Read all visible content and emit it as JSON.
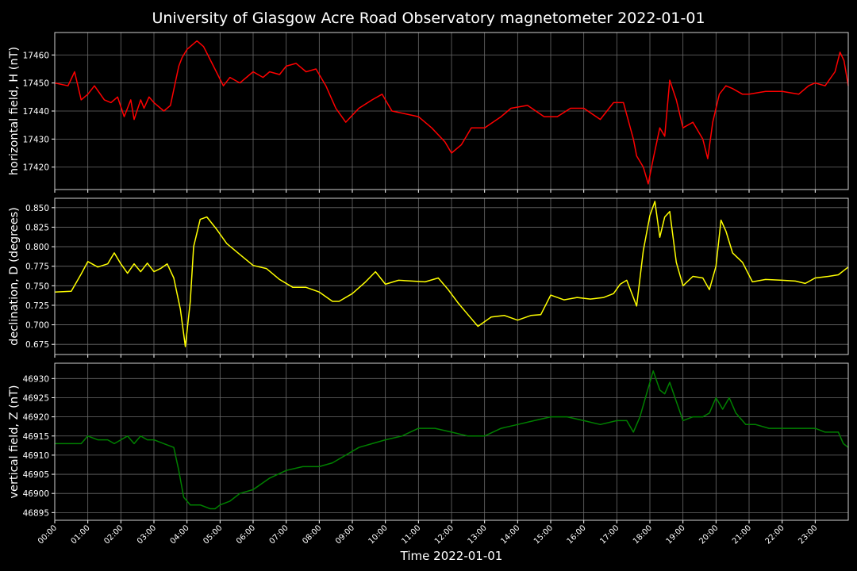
{
  "figure_title": "University of Glasgow Acre Road Observatory magnetometer 2022-01-01",
  "background": "#000000",
  "chart_data": [
    {
      "type": "line",
      "ylabel": "horizontal field, H (nT)",
      "color": "#ff0000",
      "ylim": [
        17412,
        17468
      ],
      "yticks": [
        17420,
        17430,
        17440,
        17450,
        17460
      ],
      "ytick_labels": [
        "17420",
        "17430",
        "17440",
        "17450",
        "17460"
      ],
      "grid": true,
      "x_hours": [
        0,
        0.4,
        0.6,
        0.8,
        1.0,
        1.2,
        1.5,
        1.7,
        1.9,
        2.1,
        2.3,
        2.4,
        2.6,
        2.7,
        2.85,
        3.0,
        3.3,
        3.5,
        3.75,
        3.85,
        4.0,
        4.3,
        4.5,
        4.8,
        5.1,
        5.3,
        5.6,
        6.0,
        6.3,
        6.5,
        6.8,
        7.0,
        7.3,
        7.6,
        7.9,
        8.2,
        8.5,
        8.8,
        9.2,
        9.6,
        9.9,
        10.2,
        10.6,
        11.0,
        11.4,
        11.8,
        12.0,
        12.3,
        12.6,
        13.0,
        13.5,
        13.8,
        14.3,
        14.8,
        15.2,
        15.6,
        16.0,
        16.5,
        16.9,
        17.2,
        17.5,
        17.6,
        17.8,
        17.95,
        18.1,
        18.3,
        18.45,
        18.6,
        18.8,
        19.0,
        19.3,
        19.6,
        19.75,
        19.9,
        20.1,
        20.3,
        20.5,
        20.8,
        21.0,
        21.5,
        22.0,
        22.5,
        22.8,
        23.0,
        23.3,
        23.6,
        23.75,
        23.87,
        24.0
      ],
      "values": [
        17450,
        17449,
        17454,
        17444,
        17446,
        17449,
        17444,
        17443,
        17445,
        17438,
        17444,
        17437,
        17444,
        17441,
        17445,
        17443,
        17440,
        17442,
        17456,
        17459,
        17462,
        17465,
        17463,
        17456,
        17449,
        17452,
        17450,
        17454,
        17452,
        17454,
        17453,
        17456,
        17457,
        17454,
        17455,
        17449,
        17441,
        17436,
        17441,
        17444,
        17446,
        17440,
        17439,
        17438,
        17434,
        17429,
        17425,
        17428,
        17434,
        17434,
        17438,
        17441,
        17442,
        17438,
        17438,
        17441,
        17441,
        17437,
        17443,
        17443,
        17430,
        17424,
        17420,
        17414,
        17423,
        17434,
        17431,
        17451,
        17444,
        17434,
        17436,
        17430,
        17423,
        17436,
        17446,
        17449,
        17448,
        17446,
        17446,
        17447,
        17447,
        17446,
        17449,
        17450,
        17449,
        17454,
        17461,
        17458,
        17449
      ]
    },
    {
      "type": "line",
      "ylabel": "declination, D (degrees)",
      "color": "#ffff00",
      "ylim": [
        0.662,
        0.862
      ],
      "yticks": [
        0.675,
        0.7,
        0.725,
        0.75,
        0.775,
        0.8,
        0.825,
        0.85
      ],
      "ytick_labels": [
        "0.675",
        "0.700",
        "0.725",
        "0.750",
        "0.775",
        "0.800",
        "0.825",
        "0.850"
      ],
      "grid": true,
      "x_hours": [
        0,
        0.5,
        0.8,
        1.0,
        1.3,
        1.6,
        1.8,
        2.0,
        2.2,
        2.4,
        2.6,
        2.8,
        3.0,
        3.2,
        3.4,
        3.6,
        3.8,
        3.95,
        4.1,
        4.2,
        4.4,
        4.6,
        4.9,
        5.2,
        5.6,
        6.0,
        6.4,
        6.8,
        7.2,
        7.6,
        8.0,
        8.4,
        8.6,
        9.0,
        9.4,
        9.7,
        10.0,
        10.4,
        10.8,
        11.2,
        11.6,
        11.9,
        12.2,
        12.5,
        12.8,
        13.2,
        13.6,
        14.0,
        14.4,
        14.7,
        15.0,
        15.4,
        15.8,
        16.2,
        16.6,
        16.9,
        17.1,
        17.3,
        17.6,
        17.8,
        18.0,
        18.15,
        18.3,
        18.45,
        18.6,
        18.8,
        19.0,
        19.3,
        19.6,
        19.8,
        20.0,
        20.15,
        20.3,
        20.5,
        20.8,
        21.1,
        21.5,
        22.0,
        22.4,
        22.7,
        23.0,
        23.4,
        23.7,
        24.0
      ],
      "values": [
        0.742,
        0.743,
        0.765,
        0.781,
        0.774,
        0.778,
        0.792,
        0.778,
        0.766,
        0.778,
        0.768,
        0.779,
        0.768,
        0.772,
        0.778,
        0.76,
        0.72,
        0.672,
        0.73,
        0.8,
        0.835,
        0.838,
        0.822,
        0.804,
        0.79,
        0.776,
        0.772,
        0.758,
        0.748,
        0.748,
        0.742,
        0.73,
        0.73,
        0.74,
        0.755,
        0.768,
        0.752,
        0.757,
        0.756,
        0.755,
        0.76,
        0.745,
        0.728,
        0.713,
        0.698,
        0.71,
        0.712,
        0.706,
        0.712,
        0.713,
        0.738,
        0.732,
        0.735,
        0.733,
        0.735,
        0.74,
        0.752,
        0.757,
        0.724,
        0.795,
        0.84,
        0.858,
        0.812,
        0.838,
        0.845,
        0.78,
        0.75,
        0.762,
        0.76,
        0.745,
        0.775,
        0.834,
        0.82,
        0.792,
        0.78,
        0.755,
        0.758,
        0.757,
        0.756,
        0.753,
        0.76,
        0.762,
        0.764,
        0.774
      ]
    },
    {
      "type": "line",
      "ylabel": "vertical field, Z (nT)",
      "color": "#008000",
      "xlabel": "Time 2022-01-01",
      "ylim": [
        46893,
        46934
      ],
      "yticks": [
        46895,
        46900,
        46905,
        46910,
        46915,
        46920,
        46925,
        46930
      ],
      "ytick_labels": [
        "46895",
        "46900",
        "46905",
        "46910",
        "46915",
        "46920",
        "46925",
        "46930"
      ],
      "grid": true,
      "x_hours": [
        0,
        0.4,
        0.8,
        1.0,
        1.3,
        1.6,
        1.8,
        2.0,
        2.2,
        2.4,
        2.6,
        2.8,
        3.0,
        3.3,
        3.6,
        3.75,
        3.9,
        4.1,
        4.4,
        4.7,
        4.85,
        5.0,
        5.3,
        5.6,
        6.0,
        6.5,
        7.0,
        7.5,
        8.0,
        8.4,
        8.8,
        9.2,
        9.6,
        10.0,
        10.5,
        11.0,
        11.5,
        12.0,
        12.5,
        13.0,
        13.5,
        14.0,
        14.5,
        15.0,
        15.5,
        16.0,
        16.5,
        17.0,
        17.3,
        17.5,
        17.7,
        17.9,
        18.1,
        18.3,
        18.45,
        18.6,
        18.8,
        19.0,
        19.3,
        19.6,
        19.8,
        20.0,
        20.2,
        20.4,
        20.6,
        20.9,
        21.2,
        21.6,
        22.0,
        22.5,
        23.0,
        23.3,
        23.55,
        23.7,
        23.85,
        24.0
      ],
      "values": [
        46913,
        46913,
        46913,
        46915,
        46914,
        46914,
        46913,
        46914,
        46915,
        46913,
        46915,
        46914,
        46914,
        46913,
        46912,
        46906,
        46899,
        46897,
        46897,
        46896,
        46896,
        46897,
        46898,
        46900,
        46901,
        46904,
        46906,
        46907,
        46907,
        46908,
        46910,
        46912,
        46913,
        46914,
        46915,
        46917,
        46917,
        46916,
        46915,
        46915,
        46917,
        46918,
        46919,
        46920,
        46920,
        46919,
        46918,
        46919,
        46919,
        46916,
        46920,
        46926,
        46932,
        46927,
        46926,
        46929,
        46924,
        46919,
        46920,
        46920,
        46921,
        46925,
        46922,
        46925,
        46921,
        46918,
        46918,
        46917,
        46917,
        46917,
        46917,
        46916,
        46916,
        46916,
        46913,
        46912
      ]
    }
  ],
  "x_axis": {
    "label": "Time 2022-01-01",
    "range_hours": [
      0,
      24
    ],
    "tick_labels": [
      "00:00",
      "01:00",
      "02:00",
      "03:00",
      "04:00",
      "05:00",
      "06:00",
      "07:00",
      "08:00",
      "09:00",
      "10:00",
      "11:00",
      "12:00",
      "13:00",
      "14:00",
      "15:00",
      "16:00",
      "17:00",
      "18:00",
      "19:00",
      "20:00",
      "21:00",
      "22:00",
      "23:00"
    ]
  }
}
